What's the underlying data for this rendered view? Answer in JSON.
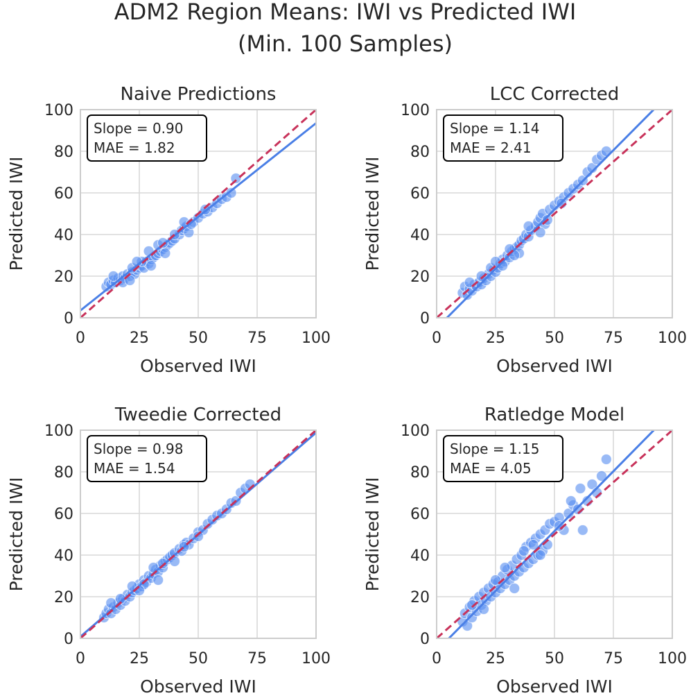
{
  "figure": {
    "title_line1": "ADM2 Region Means: IWI vs Predicted IWI",
    "title_line2": "(Min. 100 Samples)"
  },
  "colors": {
    "points": "#5b8ff0",
    "fit_line": "#4a7fe6",
    "identity_line": "#c8325a",
    "grid": "#d9d9d9",
    "frame": "#cccccc",
    "text": "#262626"
  },
  "chart_data": [
    {
      "type": "scatter",
      "title": "Naive Predictions",
      "xlabel": "Observed IWI",
      "ylabel": "Predicted IWI",
      "xlim": [
        0,
        100
      ],
      "ylim": [
        0,
        100
      ],
      "xticks": [
        "0",
        "25",
        "50",
        "75",
        "100"
      ],
      "yticks": [
        "0",
        "20",
        "40",
        "60",
        "80",
        "100"
      ],
      "stats": {
        "slope_text": "Slope = 0.90",
        "mae_text": "MAE = 1.82"
      },
      "fit": {
        "slope": 0.9,
        "intercept": 3.5
      },
      "identity": {
        "slope": 1,
        "intercept": 0
      },
      "points": [
        [
          11,
          15
        ],
        [
          12,
          17
        ],
        [
          13,
          16
        ],
        [
          14,
          18
        ],
        [
          15,
          17
        ],
        [
          16,
          19
        ],
        [
          17,
          18
        ],
        [
          18,
          20
        ],
        [
          19,
          19
        ],
        [
          20,
          21
        ],
        [
          21,
          20
        ],
        [
          22,
          22
        ],
        [
          23,
          21
        ],
        [
          24,
          23
        ],
        [
          25,
          24
        ],
        [
          26,
          25
        ],
        [
          27,
          24
        ],
        [
          28,
          27
        ],
        [
          29,
          26
        ],
        [
          30,
          28
        ],
        [
          31,
          29
        ],
        [
          32,
          30
        ],
        [
          33,
          31
        ],
        [
          34,
          32
        ],
        [
          35,
          33
        ],
        [
          36,
          34
        ],
        [
          37,
          35
        ],
        [
          38,
          36
        ],
        [
          39,
          37
        ],
        [
          40,
          38
        ],
        [
          42,
          40
        ],
        [
          43,
          42
        ],
        [
          44,
          43
        ],
        [
          45,
          44
        ],
        [
          46,
          41
        ],
        [
          48,
          46
        ],
        [
          50,
          48
        ],
        [
          52,
          50
        ],
        [
          54,
          51
        ],
        [
          56,
          53
        ],
        [
          58,
          55
        ],
        [
          60,
          57
        ],
        [
          62,
          58
        ],
        [
          64,
          60
        ],
        [
          66,
          67
        ],
        [
          14,
          20
        ],
        [
          18,
          17
        ],
        [
          22,
          24
        ],
        [
          26,
          27
        ],
        [
          30,
          25
        ],
        [
          33,
          35
        ],
        [
          36,
          31
        ],
        [
          40,
          40
        ],
        [
          44,
          46
        ],
        [
          29,
          32
        ],
        [
          24,
          27
        ],
        [
          21,
          18
        ],
        [
          35,
          36
        ],
        [
          47,
          45
        ],
        [
          53,
          52
        ]
      ]
    },
    {
      "type": "scatter",
      "title": "LCC Corrected",
      "xlabel": "Observed IWI",
      "ylabel": "Predicted IWI",
      "xlim": [
        0,
        100
      ],
      "ylim": [
        0,
        100
      ],
      "xticks": [
        "0",
        "25",
        "50",
        "75",
        "100"
      ],
      "yticks": [
        "0",
        "20",
        "40",
        "60",
        "80",
        "100"
      ],
      "stats": {
        "slope_text": "Slope = 1.14",
        "mae_text": "MAE = 2.41"
      },
      "fit": {
        "slope": 1.14,
        "intercept": -5.0
      },
      "identity": {
        "slope": 1,
        "intercept": 0
      },
      "points": [
        [
          11,
          12
        ],
        [
          12,
          15
        ],
        [
          13,
          11
        ],
        [
          14,
          14
        ],
        [
          15,
          13
        ],
        [
          16,
          16
        ],
        [
          17,
          15
        ],
        [
          18,
          17
        ],
        [
          19,
          16
        ],
        [
          20,
          19
        ],
        [
          21,
          18
        ],
        [
          22,
          21
        ],
        [
          23,
          20
        ],
        [
          24,
          23
        ],
        [
          25,
          22
        ],
        [
          26,
          24
        ],
        [
          27,
          26
        ],
        [
          28,
          28
        ],
        [
          29,
          27
        ],
        [
          30,
          30
        ],
        [
          31,
          29
        ],
        [
          32,
          32
        ],
        [
          33,
          33
        ],
        [
          34,
          34
        ],
        [
          35,
          35
        ],
        [
          36,
          37
        ],
        [
          37,
          38
        ],
        [
          38,
          40
        ],
        [
          39,
          39
        ],
        [
          40,
          42
        ],
        [
          42,
          44
        ],
        [
          43,
          46
        ],
        [
          44,
          48
        ],
        [
          45,
          50
        ],
        [
          46,
          45
        ],
        [
          48,
          52
        ],
        [
          50,
          54
        ],
        [
          52,
          56
        ],
        [
          54,
          58
        ],
        [
          56,
          60
        ],
        [
          58,
          62
        ],
        [
          60,
          64
        ],
        [
          62,
          66
        ],
        [
          64,
          70
        ],
        [
          66,
          72
        ],
        [
          68,
          76
        ],
        [
          70,
          78
        ],
        [
          72,
          80
        ],
        [
          14,
          17
        ],
        [
          19,
          20
        ],
        [
          23,
          24
        ],
        [
          28,
          25
        ],
        [
          31,
          33
        ],
        [
          35,
          31
        ],
        [
          39,
          44
        ],
        [
          44,
          41
        ],
        [
          47,
          47
        ],
        [
          53,
          55
        ],
        [
          25,
          27
        ],
        [
          33,
          30
        ]
      ]
    },
    {
      "type": "scatter",
      "title": "Tweedie Corrected",
      "xlabel": "Observed IWI",
      "ylabel": "Predicted IWI",
      "xlim": [
        0,
        100
      ],
      "ylim": [
        0,
        100
      ],
      "xticks": [
        "0",
        "25",
        "50",
        "75",
        "100"
      ],
      "yticks": [
        "0",
        "20",
        "40",
        "60",
        "80",
        "100"
      ],
      "stats": {
        "slope_text": "Slope = 0.98",
        "mae_text": "MAE = 1.54"
      },
      "fit": {
        "slope": 0.98,
        "intercept": 0.8
      },
      "identity": {
        "slope": 1,
        "intercept": 0
      },
      "points": [
        [
          10,
          10
        ],
        [
          11,
          12
        ],
        [
          12,
          14
        ],
        [
          13,
          12
        ],
        [
          14,
          15
        ],
        [
          15,
          14
        ],
        [
          16,
          17
        ],
        [
          17,
          16
        ],
        [
          18,
          19
        ],
        [
          19,
          18
        ],
        [
          20,
          21
        ],
        [
          21,
          20
        ],
        [
          22,
          22
        ],
        [
          23,
          23
        ],
        [
          24,
          24
        ],
        [
          25,
          26
        ],
        [
          26,
          25
        ],
        [
          27,
          28
        ],
        [
          28,
          27
        ],
        [
          29,
          30
        ],
        [
          30,
          29
        ],
        [
          31,
          31
        ],
        [
          32,
          33
        ],
        [
          33,
          32
        ],
        [
          34,
          35
        ],
        [
          35,
          34
        ],
        [
          36,
          37
        ],
        [
          37,
          38
        ],
        [
          38,
          39
        ],
        [
          39,
          40
        ],
        [
          40,
          41
        ],
        [
          42,
          43
        ],
        [
          43,
          42
        ],
        [
          44,
          45
        ],
        [
          45,
          46
        ],
        [
          46,
          45
        ],
        [
          48,
          48
        ],
        [
          50,
          51
        ],
        [
          52,
          52
        ],
        [
          54,
          55
        ],
        [
          56,
          57
        ],
        [
          58,
          59
        ],
        [
          60,
          60
        ],
        [
          62,
          62
        ],
        [
          64,
          65
        ],
        [
          66,
          66
        ],
        [
          68,
          70
        ],
        [
          70,
          72
        ],
        [
          72,
          74
        ],
        [
          13,
          17
        ],
        [
          17,
          19
        ],
        [
          22,
          25
        ],
        [
          27,
          26
        ],
        [
          31,
          34
        ],
        [
          35,
          36
        ],
        [
          40,
          37
        ],
        [
          44,
          44
        ],
        [
          50,
          49
        ],
        [
          25,
          23
        ],
        [
          33,
          28
        ]
      ]
    },
    {
      "type": "scatter",
      "title": "Ratledge Model",
      "xlabel": "Observed IWI",
      "ylabel": "Predicted IWI",
      "xlim": [
        0,
        100
      ],
      "ylim": [
        0,
        100
      ],
      "xticks": [
        "0",
        "25",
        "50",
        "75",
        "100"
      ],
      "yticks": [
        "0",
        "20",
        "40",
        "60",
        "80",
        "100"
      ],
      "stats": {
        "slope_text": "Slope = 1.15",
        "mae_text": "MAE = 4.05"
      },
      "fit": {
        "slope": 1.15,
        "intercept": -6.0
      },
      "identity": {
        "slope": 1,
        "intercept": 0
      },
      "points": [
        [
          11,
          8
        ],
        [
          12,
          12
        ],
        [
          13,
          6
        ],
        [
          14,
          15
        ],
        [
          15,
          10
        ],
        [
          16,
          18
        ],
        [
          17,
          13
        ],
        [
          18,
          20
        ],
        [
          19,
          16
        ],
        [
          20,
          22
        ],
        [
          21,
          18
        ],
        [
          22,
          24
        ],
        [
          23,
          20
        ],
        [
          24,
          26
        ],
        [
          25,
          22
        ],
        [
          26,
          27
        ],
        [
          27,
          24
        ],
        [
          28,
          30
        ],
        [
          29,
          26
        ],
        [
          30,
          33
        ],
        [
          31,
          28
        ],
        [
          32,
          35
        ],
        [
          33,
          30
        ],
        [
          34,
          38
        ],
        [
          35,
          32
        ],
        [
          36,
          40
        ],
        [
          37,
          34
        ],
        [
          38,
          44
        ],
        [
          39,
          36
        ],
        [
          40,
          46
        ],
        [
          41,
          38
        ],
        [
          42,
          48
        ],
        [
          43,
          40
        ],
        [
          44,
          50
        ],
        [
          45,
          42
        ],
        [
          46,
          52
        ],
        [
          47,
          45
        ],
        [
          48,
          55
        ],
        [
          50,
          56
        ],
        [
          52,
          58
        ],
        [
          54,
          52
        ],
        [
          56,
          60
        ],
        [
          58,
          64
        ],
        [
          60,
          62
        ],
        [
          61,
          72
        ],
        [
          62,
          52
        ],
        [
          64,
          66
        ],
        [
          66,
          74
        ],
        [
          68,
          70
        ],
        [
          70,
          78
        ],
        [
          72,
          86
        ],
        [
          15,
          16
        ],
        [
          20,
          14
        ],
        [
          25,
          28
        ],
        [
          29,
          34
        ],
        [
          33,
          24
        ],
        [
          37,
          42
        ],
        [
          41,
          45
        ],
        [
          44,
          40
        ],
        [
          52,
          54
        ],
        [
          57,
          66
        ]
      ]
    }
  ]
}
